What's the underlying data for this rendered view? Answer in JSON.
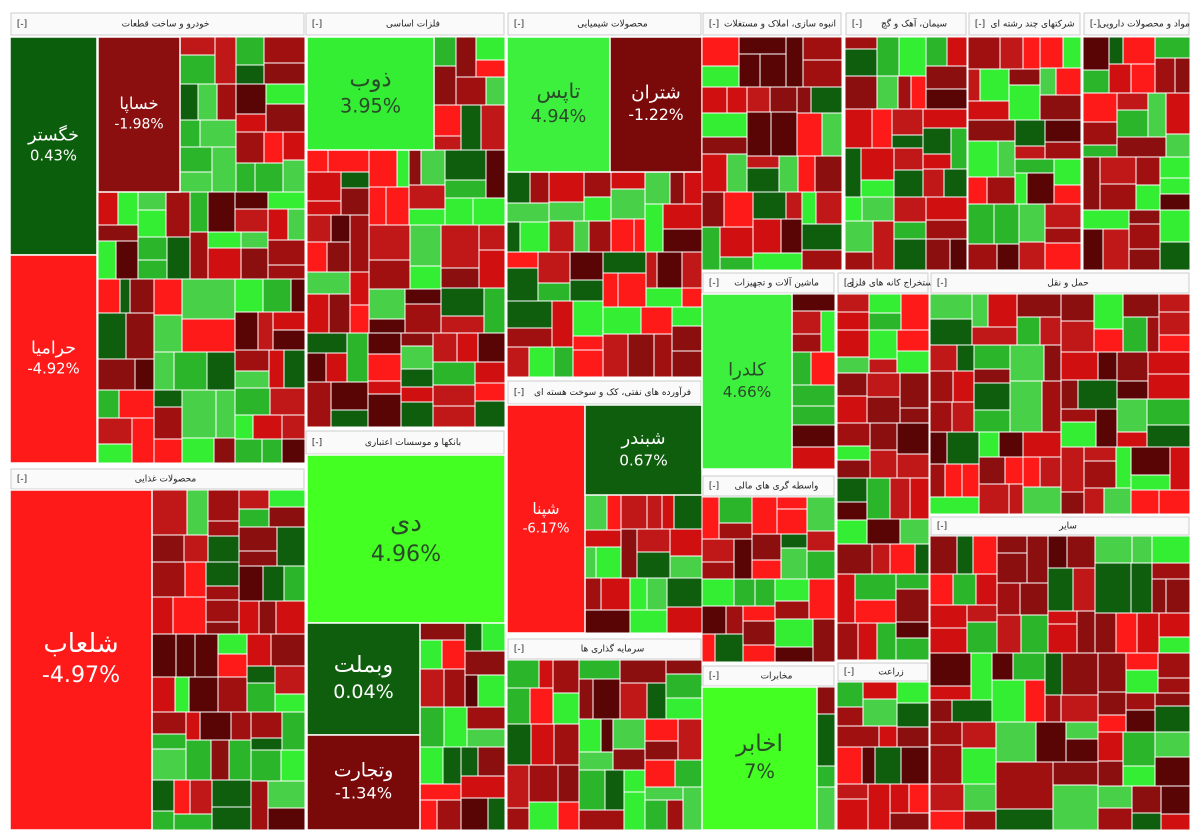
{
  "chart_data": {
    "type": "treemap",
    "collapse_label": "[-]",
    "sectors": [
      {
        "name": "خودرو و ساخت قطعات",
        "tiles": [
          {
            "name": "خگستر",
            "change": 0.43,
            "label": "0.43%",
            "color": "#0b5e0b"
          },
          {
            "name": "حرامیا",
            "change": -4.92,
            "label": "-4.92%",
            "color": "#ff1a1a"
          },
          {
            "name": "خساپا",
            "change": -1.98,
            "label": "-1.98%",
            "color": "#8b0f0f"
          }
        ]
      },
      {
        "name": "فلزات اساسی",
        "tiles": [
          {
            "name": "ذوب",
            "change": 3.95,
            "label": "3.95%",
            "color": "#33ee33"
          }
        ]
      },
      {
        "name": "محصولات شیمیایی",
        "tiles": [
          {
            "name": "تاپس",
            "change": 4.94,
            "label": "4.94%",
            "color": "#3ef03e"
          },
          {
            "name": "شتران",
            "change": -1.22,
            "label": "-1.22%",
            "color": "#7a0a0a"
          }
        ]
      },
      {
        "name": "محصولات غذایی",
        "tiles": [
          {
            "name": "شلعاب",
            "change": -4.97,
            "label": "-4.97%",
            "color": "#ff1a1a"
          }
        ]
      },
      {
        "name": "بانکها و موسسات اعتباری",
        "tiles": [
          {
            "name": "دی",
            "change": 4.96,
            "label": "4.96%",
            "color": "#44ff22"
          },
          {
            "name": "وبملت",
            "change": 0.04,
            "label": "0.04%",
            "color": "#0e5e0e"
          },
          {
            "name": "وتجارت",
            "change": -1.34,
            "label": "-1.34%",
            "color": "#7a0a0a"
          }
        ]
      },
      {
        "name": "فرآورده های نفتی، کک و سوخت هسته ای",
        "tiles": [
          {
            "name": "شپنا",
            "change": -6.17,
            "label": "-6.17%",
            "color": "#ff1a1a"
          },
          {
            "name": "شبندر",
            "change": 0.67,
            "label": "0.67%",
            "color": "#0e5e0e"
          }
        ]
      },
      {
        "name": "سرمایه گذاری ها",
        "tiles": []
      },
      {
        "name": "انبوه سازی، املاک و مستغلات",
        "tiles": []
      },
      {
        "name": "ماشین آلات و تجهیزات",
        "tiles": [
          {
            "name": "کلدرا",
            "change": 4.66,
            "label": "4.66%",
            "color": "#3ef03e"
          }
        ]
      },
      {
        "name": "واسطه گری های مالی",
        "tiles": []
      },
      {
        "name": "مخابرات",
        "tiles": [
          {
            "name": "اخابر",
            "change": 7,
            "label": "7%",
            "color": "#44ff22"
          }
        ]
      },
      {
        "name": "سیمان، آهک و گچ",
        "tiles": []
      },
      {
        "name": "شرکتهای چند رشته ای",
        "tiles": []
      },
      {
        "name": "مواد و محصولات دارویی",
        "tiles": []
      },
      {
        "name": "استخراج کانه های فلزی",
        "tiles": []
      },
      {
        "name": "حمل و نقل",
        "tiles": []
      },
      {
        "name": "زراعت",
        "tiles": []
      },
      {
        "name": "سایر",
        "tiles": []
      }
    ]
  }
}
